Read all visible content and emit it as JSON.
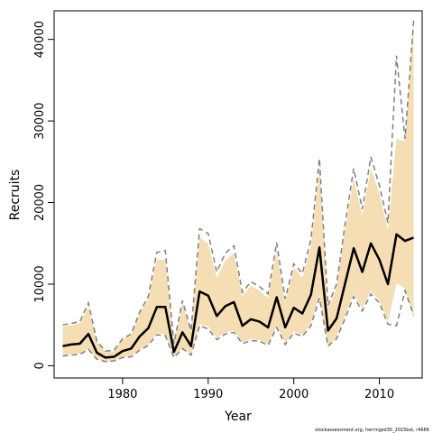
{
  "chart_data": {
    "type": "line",
    "title": "",
    "xlabel": "Year",
    "ylabel": "Recruits",
    "xlim": [
      1972,
      2015
    ],
    "ylim": [
      -1500,
      43500
    ],
    "x_ticks": [
      1980,
      1990,
      2000,
      2010
    ],
    "y_ticks": [
      0,
      10000,
      20000,
      30000,
      40000
    ],
    "x_tick_labels": [
      "1980",
      "1990",
      "2000",
      "2010"
    ],
    "y_tick_labels": [
      "0",
      "10000",
      "20000",
      "30000",
      "40000"
    ],
    "grid": false,
    "legend": "none",
    "colors": {
      "band": "#f5deb3",
      "estimate": "#000000",
      "interval": "#808080",
      "frame": "#000000"
    },
    "footnote": "stockassessment.org, herringsd30_2015bst, r4666",
    "x": [
      1973,
      1974,
      1975,
      1976,
      1977,
      1978,
      1979,
      1980,
      1981,
      1982,
      1983,
      1984,
      1985,
      1986,
      1987,
      1988,
      1989,
      1990,
      1991,
      1992,
      1993,
      1994,
      1995,
      1996,
      1997,
      1998,
      1999,
      2000,
      2001,
      2002,
      2003,
      2004,
      2005,
      2006,
      2007,
      2008,
      2009,
      2010,
      2011,
      2012,
      2013,
      2014
    ],
    "series": [
      {
        "role": "estimate",
        "values": [
          2400,
          2600,
          2700,
          3900,
          1600,
          1000,
          1100,
          1800,
          2100,
          3600,
          4600,
          7200,
          7200,
          1700,
          4100,
          2400,
          9100,
          8600,
          6100,
          7300,
          7800,
          4900,
          5700,
          5400,
          4700,
          8400,
          4700,
          7100,
          6400,
          8700,
          14500,
          4300,
          5800,
          10100,
          14400,
          11500,
          15000,
          13000,
          10000,
          16100,
          15300,
          15700
        ]
      },
      {
        "role": "upper-interval",
        "values": [
          5000,
          5200,
          5400,
          7700,
          3000,
          1800,
          1900,
          3300,
          3900,
          6600,
          8500,
          13900,
          14100,
          2700,
          8000,
          4300,
          16800,
          16200,
          11500,
          13800,
          14700,
          9000,
          10300,
          9700,
          8800,
          15100,
          8200,
          12500,
          11300,
          15500,
          25400,
          7400,
          10000,
          17400,
          24200,
          19200,
          25600,
          22100,
          17500,
          38000,
          27800,
          42300
        ]
      },
      {
        "role": "lower-interval",
        "values": [
          1200,
          1300,
          1400,
          2000,
          800,
          500,
          600,
          1000,
          1100,
          1900,
          2500,
          3800,
          3700,
          1000,
          2100,
          1300,
          4900,
          4500,
          3200,
          3900,
          4100,
          2700,
          3100,
          3000,
          2500,
          4700,
          2600,
          4000,
          3600,
          4900,
          8300,
          2400,
          3300,
          5800,
          8500,
          6700,
          8800,
          7700,
          5100,
          4900,
          9200,
          6200
        ]
      },
      {
        "role": "band-upper",
        "values": [
          4800,
          5000,
          5200,
          7200,
          2900,
          1700,
          1800,
          3200,
          3800,
          6400,
          8200,
          13000,
          13000,
          2600,
          7700,
          4200,
          15700,
          15000,
          10800,
          12900,
          13800,
          8500,
          9800,
          9200,
          8300,
          14200,
          7800,
          12000,
          10800,
          14700,
          24300,
          7000,
          9600,
          16600,
          23000,
          18400,
          24200,
          21100,
          16700,
          27800,
          27500,
          42600
        ]
      },
      {
        "role": "band-lower",
        "values": [
          1300,
          1400,
          1500,
          2100,
          850,
          550,
          650,
          1050,
          1200,
          2000,
          2600,
          4000,
          3900,
          1050,
          2200,
          1350,
          5100,
          4800,
          3400,
          4100,
          4300,
          2850,
          3300,
          3150,
          2650,
          5000,
          2750,
          4200,
          3800,
          5100,
          8700,
          2500,
          3500,
          6100,
          8900,
          7000,
          9200,
          8000,
          5300,
          10100,
          9500,
          5900
        ]
      }
    ]
  }
}
